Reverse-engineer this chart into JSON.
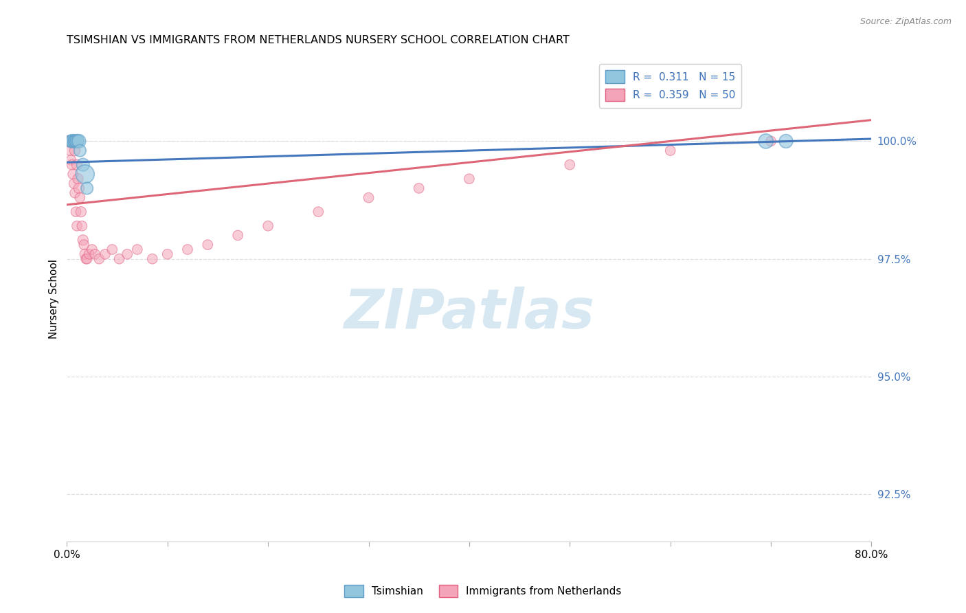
{
  "title": "TSIMSHIAN VS IMMIGRANTS FROM NETHERLANDS NURSERY SCHOOL CORRELATION CHART",
  "source": "Source: ZipAtlas.com",
  "ylabel": "Nursery School",
  "yticks": [
    92.5,
    95.0,
    97.5,
    100.0
  ],
  "ytick_labels": [
    "92.5%",
    "95.0%",
    "97.5%",
    "100.0%"
  ],
  "legend_blue_label": "Tsimshian",
  "legend_pink_label": "Immigrants from Netherlands",
  "blue_R": 0.311,
  "blue_N": 15,
  "pink_R": 0.359,
  "pink_N": 50,
  "blue_color": "#92c5de",
  "pink_color": "#f4a4b8",
  "blue_edge_color": "#5b9ec9",
  "pink_edge_color": "#e06080",
  "blue_line_color": "#4477bb",
  "pink_line_color": "#dd6677",
  "watermark_color": "#d0e4f0",
  "watermark": "ZIPatlas",
  "xlim": [
    0.0,
    0.8
  ],
  "ylim": [
    91.5,
    101.8
  ],
  "blue_line_x": [
    0.0,
    0.8
  ],
  "blue_line_y": [
    99.55,
    100.05
  ],
  "pink_line_x": [
    0.0,
    0.8
  ],
  "pink_line_y": [
    98.65,
    100.45
  ],
  "blue_x": [
    0.004,
    0.005,
    0.006,
    0.007,
    0.008,
    0.009,
    0.01,
    0.011,
    0.012,
    0.013,
    0.016,
    0.018,
    0.02,
    0.695,
    0.715
  ],
  "blue_y": [
    100.0,
    100.0,
    100.0,
    100.0,
    100.0,
    100.0,
    100.0,
    100.0,
    100.0,
    99.8,
    99.5,
    99.3,
    99.0,
    100.0,
    100.0
  ],
  "blue_s": [
    180,
    160,
    200,
    160,
    180,
    160,
    200,
    160,
    200,
    160,
    180,
    380,
    160,
    230,
    200
  ],
  "pink_x": [
    0.001,
    0.002,
    0.003,
    0.003,
    0.004,
    0.004,
    0.005,
    0.005,
    0.006,
    0.006,
    0.007,
    0.007,
    0.008,
    0.008,
    0.009,
    0.009,
    0.01,
    0.01,
    0.011,
    0.012,
    0.013,
    0.014,
    0.015,
    0.016,
    0.017,
    0.018,
    0.019,
    0.02,
    0.022,
    0.025,
    0.028,
    0.032,
    0.038,
    0.045,
    0.052,
    0.06,
    0.07,
    0.085,
    0.1,
    0.12,
    0.14,
    0.17,
    0.2,
    0.25,
    0.3,
    0.35,
    0.4,
    0.5,
    0.6,
    0.7
  ],
  "pink_y": [
    100.0,
    100.0,
    100.0,
    99.8,
    100.0,
    99.6,
    100.0,
    99.5,
    100.0,
    99.3,
    100.0,
    99.1,
    99.8,
    98.9,
    100.0,
    98.5,
    99.5,
    98.2,
    99.2,
    99.0,
    98.8,
    98.5,
    98.2,
    97.9,
    97.8,
    97.6,
    97.5,
    97.5,
    97.6,
    97.7,
    97.6,
    97.5,
    97.6,
    97.7,
    97.5,
    97.6,
    97.7,
    97.5,
    97.6,
    97.7,
    97.8,
    98.0,
    98.2,
    98.5,
    98.8,
    99.0,
    99.2,
    99.5,
    99.8,
    100.0
  ],
  "pink_s": [
    120,
    120,
    130,
    110,
    130,
    110,
    130,
    110,
    130,
    110,
    130,
    110,
    120,
    110,
    130,
    110,
    120,
    110,
    120,
    120,
    110,
    120,
    110,
    120,
    110,
    120,
    110,
    110,
    110,
    110,
    110,
    110,
    110,
    110,
    110,
    110,
    110,
    110,
    110,
    110,
    110,
    110,
    110,
    110,
    110,
    110,
    110,
    110,
    110,
    110
  ]
}
